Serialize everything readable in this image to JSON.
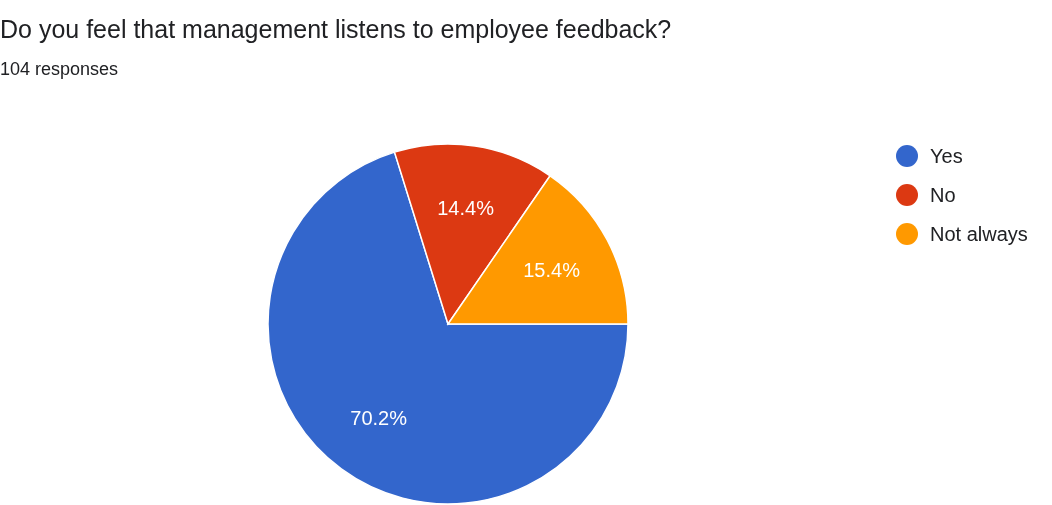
{
  "chart_data": {
    "type": "pie",
    "title": "Do you feel that management listens to employee feedback?",
    "subtitle": "104 responses",
    "categories": [
      "Yes",
      "No",
      "Not always"
    ],
    "values": [
      70.2,
      14.4,
      15.4
    ],
    "colors": [
      "#3366cc",
      "#dc3912",
      "#ff9900"
    ],
    "value_labels": [
      "70.2%",
      "14.4%",
      "15.4%"
    ],
    "legend": "top right"
  }
}
